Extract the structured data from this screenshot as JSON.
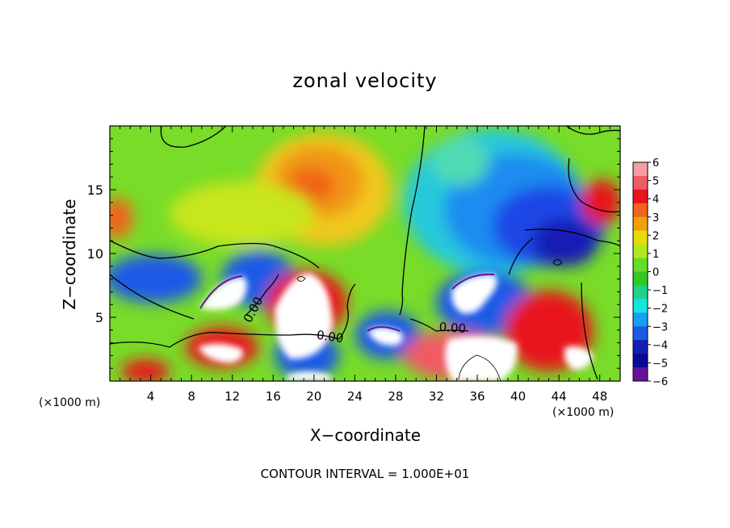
{
  "chart_data": {
    "type": "heatmap",
    "title": "zonal velocity",
    "xlabel": "X−coordinate",
    "ylabel": "Z−coordinate",
    "x_unit_left": "(×1000 m)",
    "x_unit_right": "(×1000 m)",
    "xlim": [
      0,
      50
    ],
    "ylim": [
      0,
      20
    ],
    "x_ticks": [
      4,
      8,
      12,
      16,
      20,
      24,
      28,
      32,
      36,
      40,
      44,
      48
    ],
    "y_ticks": [
      5,
      10,
      15
    ],
    "colorbar": {
      "ticks": [
        6,
        5,
        4,
        3,
        2,
        1,
        0,
        -1,
        -2,
        -3,
        -4,
        -5,
        -6
      ],
      "colors": [
        "#f49ea4",
        "#f05a64",
        "#e8141e",
        "#f0641e",
        "#f0a00a",
        "#e6dc0a",
        "#b4e61e",
        "#64dc28",
        "#32c81e",
        "#1ed28c",
        "#14e6dc",
        "#14a0f0",
        "#1e5ae6",
        "#141eb4",
        "#0a0a96",
        "#64149b"
      ]
    },
    "contour_labels": [
      "0.00",
      "0.00",
      "0.00"
    ],
    "footer": "CONTOUR INTERVAL = 1.000E+01"
  }
}
